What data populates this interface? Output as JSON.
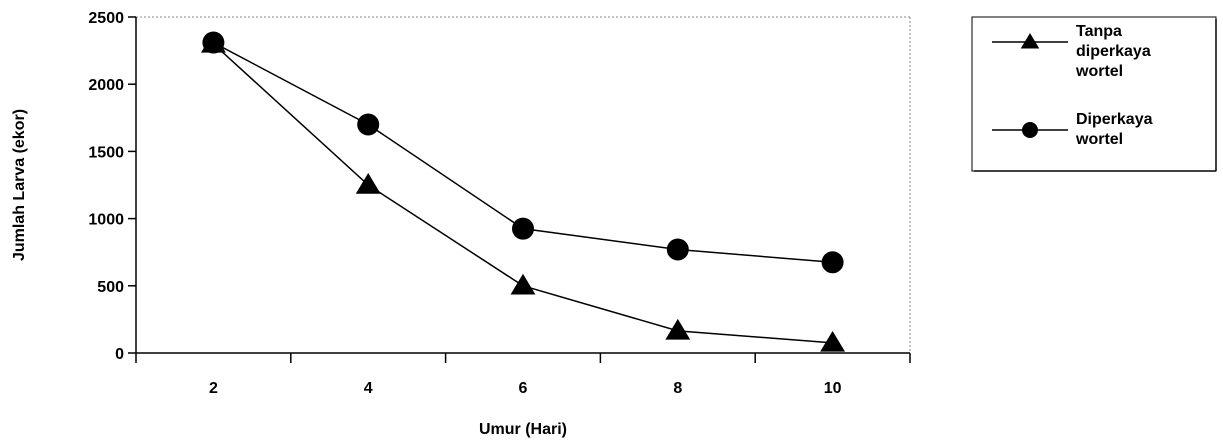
{
  "chart_data": {
    "type": "line",
    "xlabel": "Umur (Hari)",
    "ylabel": "Jumlah Larva (ekor)",
    "x": [
      2,
      4,
      6,
      8,
      10
    ],
    "xlim": [
      1,
      11
    ],
    "ylim": [
      0,
      2500
    ],
    "y_ticks": [
      "0",
      "500",
      "1000",
      "1500",
      "2000",
      "2500"
    ],
    "x_ticks": [
      "2",
      "4",
      "6",
      "8",
      "10"
    ],
    "grid": false,
    "legend_position": "right",
    "series": [
      {
        "name": "Tanpa diperkaya wortel",
        "name_lines": [
          "Tanpa",
          "diperkaya",
          "wortel"
        ],
        "marker": "triangle",
        "values": [
          2300,
          1250,
          500,
          165,
          75
        ]
      },
      {
        "name": "Diperkaya wortel",
        "name_lines": [
          "Diperkaya",
          "wortel"
        ],
        "marker": "circle",
        "values": [
          2310,
          1700,
          925,
          770,
          675
        ]
      }
    ]
  }
}
